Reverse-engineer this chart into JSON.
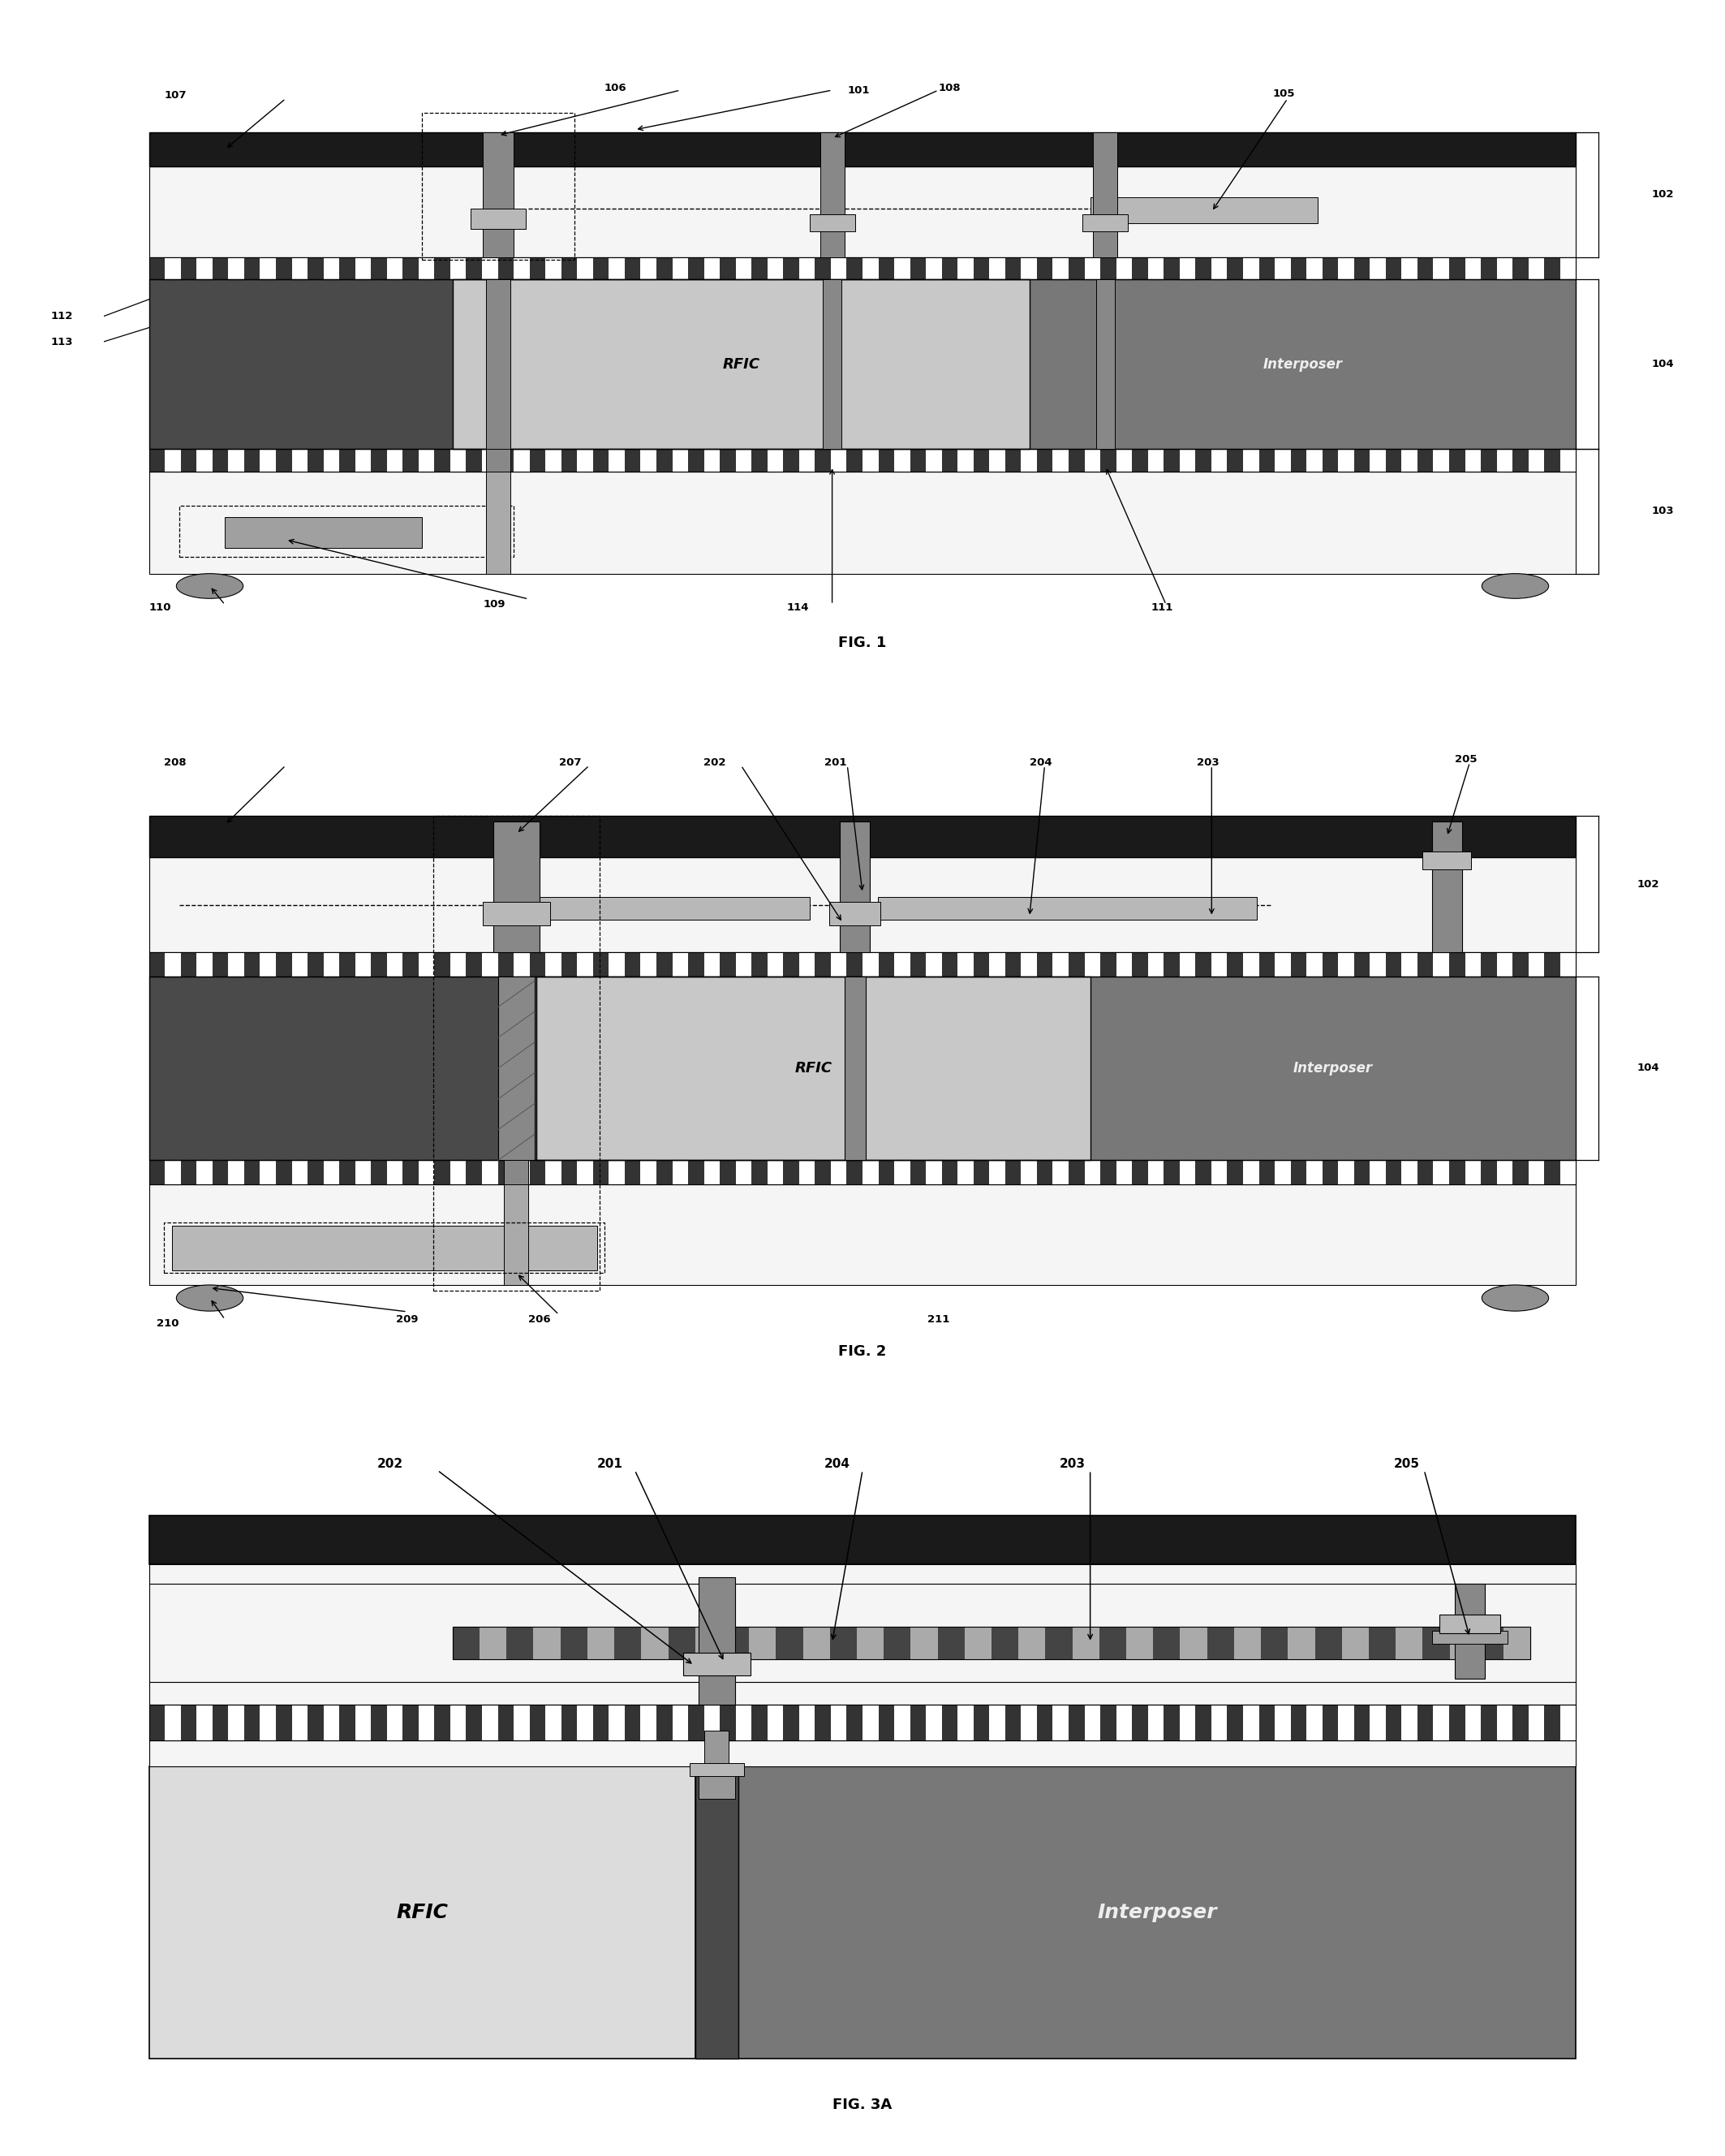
{
  "fig_width": 21.26,
  "fig_height": 26.56,
  "bg_color": "#ffffff",
  "dark_cap_color": "#1a1a1a",
  "dark_core_color": "#4a4a4a",
  "medium_gray": "#696969",
  "light_substrate": "#dcdcdc",
  "rfic_fill": "#c8c8c8",
  "interposer_fill": "#787878",
  "via_color": "#888888",
  "pad_color": "#b8b8b8",
  "solder_ball": "#909090",
  "white_layer": "#f5f5f5",
  "trace_gray": "#a0a0a0",
  "separator_dark": "#3a3a3a",
  "fig1_caption": "FIG. 1",
  "fig2_caption": "FIG. 2",
  "fig3a_caption": "FIG. 3A"
}
